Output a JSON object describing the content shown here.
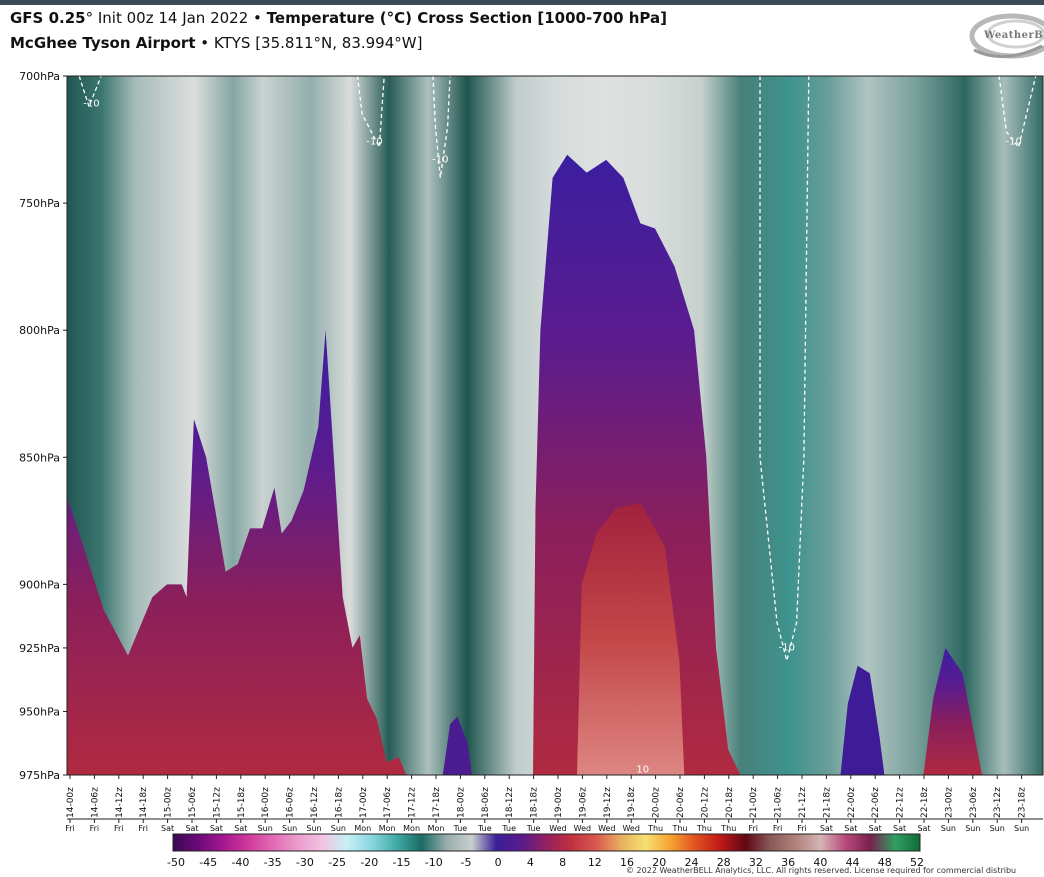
{
  "header": {
    "model": "GFS 0.25",
    "deg": "°",
    "init": " Init 00z 14 Jan 2022",
    "bullet": " • ",
    "title": "Temperature (°C) Cross Section [1000-700 hPa]",
    "station": "McGhee Tyson Airport",
    "station_info": "KTYS [35.811°N, 83.994°W]"
  },
  "logo_text": "WeatherBE",
  "copyright": "© 2022 WeatherBELL Analytics, LLC. All rights reserved. License required for commercial distribu",
  "chart_data": {
    "type": "heatmap",
    "title": "Temperature (°C) Cross Section [1000-700 hPa]",
    "y_axis": {
      "labels": [
        "700hPa",
        "750hPa",
        "800hPa",
        "850hPa",
        "900hPa",
        "925hPa",
        "950hPa",
        "975hPa"
      ],
      "values": [
        700,
        750,
        800,
        850,
        900,
        925,
        950,
        975
      ],
      "range": [
        700,
        975
      ],
      "direction": "pressure decreasing upward"
    },
    "x_axis": {
      "times": [
        "14-00z",
        "14-06z",
        "14-12z",
        "14-18z",
        "15-00z",
        "15-06z",
        "15-12z",
        "15-18z",
        "16-00z",
        "16-06z",
        "16-12z",
        "16-18z",
        "17-00z",
        "17-06z",
        "17-12z",
        "17-18z",
        "18-00z",
        "18-06z",
        "18-12z",
        "18-18z",
        "19-00z",
        "19-06z",
        "19-12z",
        "19-18z",
        "20-00z",
        "20-06z",
        "20-12z",
        "20-18z",
        "21-00z",
        "21-06z",
        "21-12z",
        "21-18z",
        "22-00z",
        "22-06z",
        "22-12z",
        "22-18z",
        "23-00z",
        "23-06z",
        "23-12z",
        "23-18z"
      ],
      "days": [
        "Fri",
        "Fri",
        "Fri",
        "Fri",
        "Sat",
        "Sat",
        "Sat",
        "Sat",
        "Sun",
        "Sun",
        "Sun",
        "Sun",
        "Mon",
        "Mon",
        "Mon",
        "Mon",
        "Tue",
        "Tue",
        "Tue",
        "Tue",
        "Wed",
        "Wed",
        "Wed",
        "Wed",
        "Thu",
        "Thu",
        "Thu",
        "Thu",
        "Fri",
        "Fri",
        "Fri",
        "Sat",
        "Sat",
        "Sat",
        "Sat",
        "Sat",
        "Sun",
        "Sun",
        "Sun",
        "Sun"
      ]
    },
    "contour_labels": [
      {
        "text": "-10",
        "t": 0.5,
        "p": 712
      },
      {
        "text": "-10",
        "t": 12.1,
        "p": 727
      },
      {
        "text": "-10",
        "t": 14.8,
        "p": 734
      },
      {
        "text": "-10",
        "t": 29.0,
        "p": 926
      },
      {
        "text": "-10",
        "t": 38.3,
        "p": 727
      },
      {
        "text": "10",
        "t": 23.1,
        "p": 974
      }
    ],
    "colorbar": {
      "ticks": [
        "-50",
        "-45",
        "-40",
        "-35",
        "-30",
        "-25",
        "-20",
        "-15",
        "-10",
        "-5",
        "0",
        "4",
        "8",
        "12",
        "16",
        "20",
        "24",
        "28",
        "32",
        "36",
        "40",
        "44",
        "48",
        "52"
      ],
      "colors": [
        "#3a0a50",
        "#6a0a7a",
        "#a51690",
        "#d0389a",
        "#e06ab4",
        "#eb9ccd",
        "#f2c4e0",
        "#c5f0f5",
        "#88d4df",
        "#3eaaa3",
        "#1a6b63",
        "#9aaeae",
        "#c8cece",
        "#3a1e96",
        "#5a1c8c",
        "#94205e",
        "#c03040",
        "#d85a50",
        "#e8b060",
        "#f5e070",
        "#f6a030",
        "#e05020",
        "#c01818",
        "#600814",
        "#8a5a5a",
        "#b0807a",
        "#d4b4b4",
        "#b84a7a",
        "#7a2050",
        "#30a060",
        "#106a38"
      ]
    }
  }
}
